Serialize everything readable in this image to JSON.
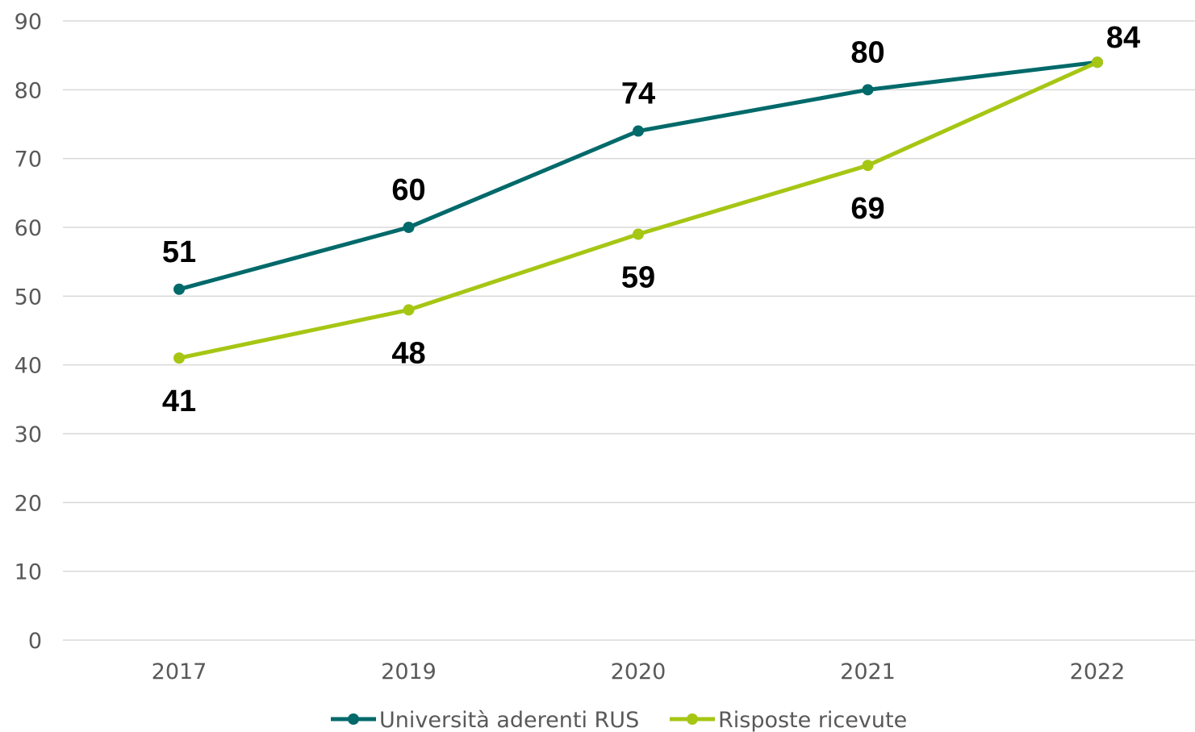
{
  "chart_data": {
    "type": "line",
    "categories": [
      "2017",
      "2019",
      "2020",
      "2021",
      "2022"
    ],
    "y_ticks": [
      "0",
      "10",
      "20",
      "30",
      "40",
      "50",
      "60",
      "70",
      "80",
      "90"
    ],
    "ylim": [
      0,
      90
    ],
    "grid": true,
    "legend_position": "bottom",
    "series": [
      {
        "name": "Università aderenti RUS",
        "color": "#00696a",
        "values": [
          51,
          60,
          74,
          80,
          84
        ],
        "labels": [
          "51",
          "60",
          "74",
          "80",
          "84"
        ]
      },
      {
        "name": "Risposte ricevute",
        "color": "#a6c614",
        "values": [
          41,
          48,
          59,
          69,
          84
        ],
        "labels": [
          "41",
          "48",
          "59",
          "69",
          ""
        ]
      }
    ]
  }
}
